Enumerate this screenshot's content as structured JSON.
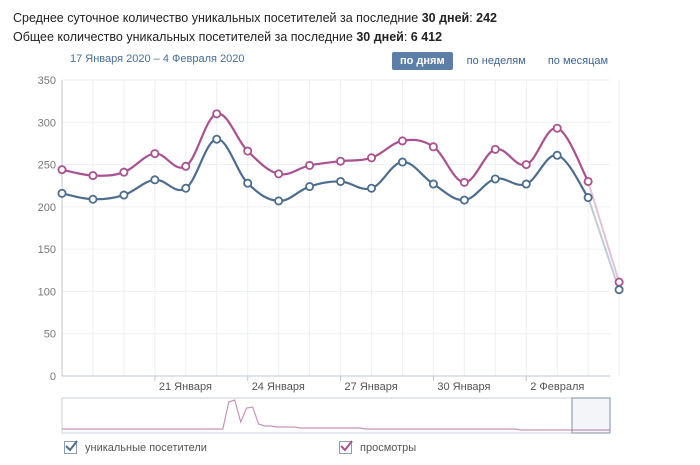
{
  "stats": {
    "line1_prefix": "Среднее суточное количество уникальных посетителей за последние ",
    "line1_days": "30 дней",
    "line1_sep": ": ",
    "line1_value": "242",
    "line2_prefix": "Общее количество уникальных посетителей за последние ",
    "line2_days": "30 дней",
    "line2_sep": ": ",
    "line2_value": "6 412"
  },
  "date_range": "17 Января 2020 – 4 Февраля 2020",
  "period_buttons": [
    {
      "label": "по дням",
      "active": true
    },
    {
      "label": "по неделям",
      "active": false
    },
    {
      "label": "по месяцам",
      "active": false
    }
  ],
  "legend": {
    "visitors": "уникальные посетители",
    "views": "просмотры"
  },
  "colors": {
    "visitors": "#4d6d8e",
    "views": "#a9528d",
    "grid": "#eceff3",
    "axis_text": "#777777",
    "active_button": "#5b7fa6"
  },
  "chart_data": {
    "type": "line",
    "ylim": [
      0,
      350
    ],
    "yticks": [
      0,
      50,
      100,
      150,
      200,
      250,
      300,
      350
    ],
    "x_tick_labels": [
      "21 Января",
      "24 Января",
      "27 Января",
      "30 Января",
      "2 Февраля"
    ],
    "x_tick_indices": [
      3,
      6,
      9,
      12,
      15
    ],
    "grid": true,
    "series": [
      {
        "name": "уникальные посетители",
        "values": [
          216,
          209,
          214,
          232,
          222,
          280,
          228,
          207,
          224,
          230,
          222,
          253,
          227,
          208,
          233,
          227,
          261,
          211,
          102
        ]
      },
      {
        "name": "просмотры",
        "values": [
          244,
          237,
          241,
          263,
          248,
          310,
          266,
          239,
          249,
          254,
          258,
          278,
          271,
          229,
          268,
          250,
          293,
          230,
          111
        ]
      }
    ]
  }
}
